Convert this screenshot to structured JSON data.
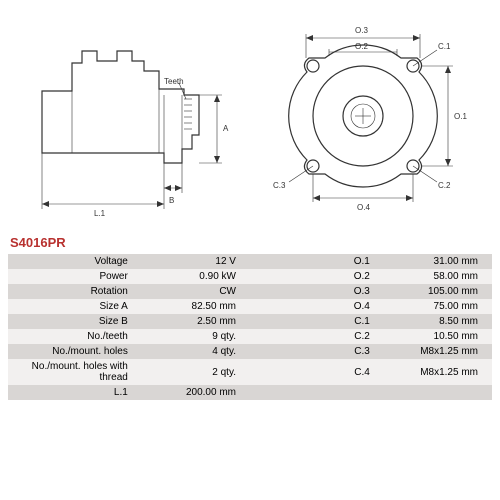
{
  "part_number": "S4016PR",
  "specs": [
    {
      "label1": "Voltage",
      "val1": "12 V",
      "label2": "O.1",
      "val2": "31.00 mm"
    },
    {
      "label1": "Power",
      "val1": "0.90 kW",
      "label2": "O.2",
      "val2": "58.00 mm"
    },
    {
      "label1": "Rotation",
      "val1": "CW",
      "label2": "O.3",
      "val2": "105.00 mm"
    },
    {
      "label1": "Size A",
      "val1": "82.50 mm",
      "label2": "O.4",
      "val2": "75.00 mm"
    },
    {
      "label1": "Size B",
      "val1": "2.50 mm",
      "label2": "C.1",
      "val2": "8.50 mm"
    },
    {
      "label1": "No./teeth",
      "val1": "9 qty.",
      "label2": "C.2",
      "val2": "10.50 mm"
    },
    {
      "label1": "No./mount. holes",
      "val1": "4 qty.",
      "label2": "C.3",
      "val2": "M8x1.25 mm"
    },
    {
      "label1": "No./mount. holes with thread",
      "val1": "2 qty.",
      "label2": "C.4",
      "val2": "M8x1.25 mm"
    },
    {
      "label1": "L.1",
      "val1": "200.00 mm",
      "label2": "",
      "val2": ""
    }
  ],
  "dims": {
    "side": {
      "L1": "L.1",
      "B": "B",
      "A": "A",
      "Teeth": "Teeth"
    },
    "front": {
      "O1": "O.1",
      "O2": "O.2",
      "O3": "O.3",
      "C1": "C.1",
      "C2": "C.2",
      "C3": "C.3"
    }
  },
  "colors": {
    "accent": "#b8312f",
    "row_odd": "#d9d6d4",
    "row_even": "#f2f0ef"
  }
}
